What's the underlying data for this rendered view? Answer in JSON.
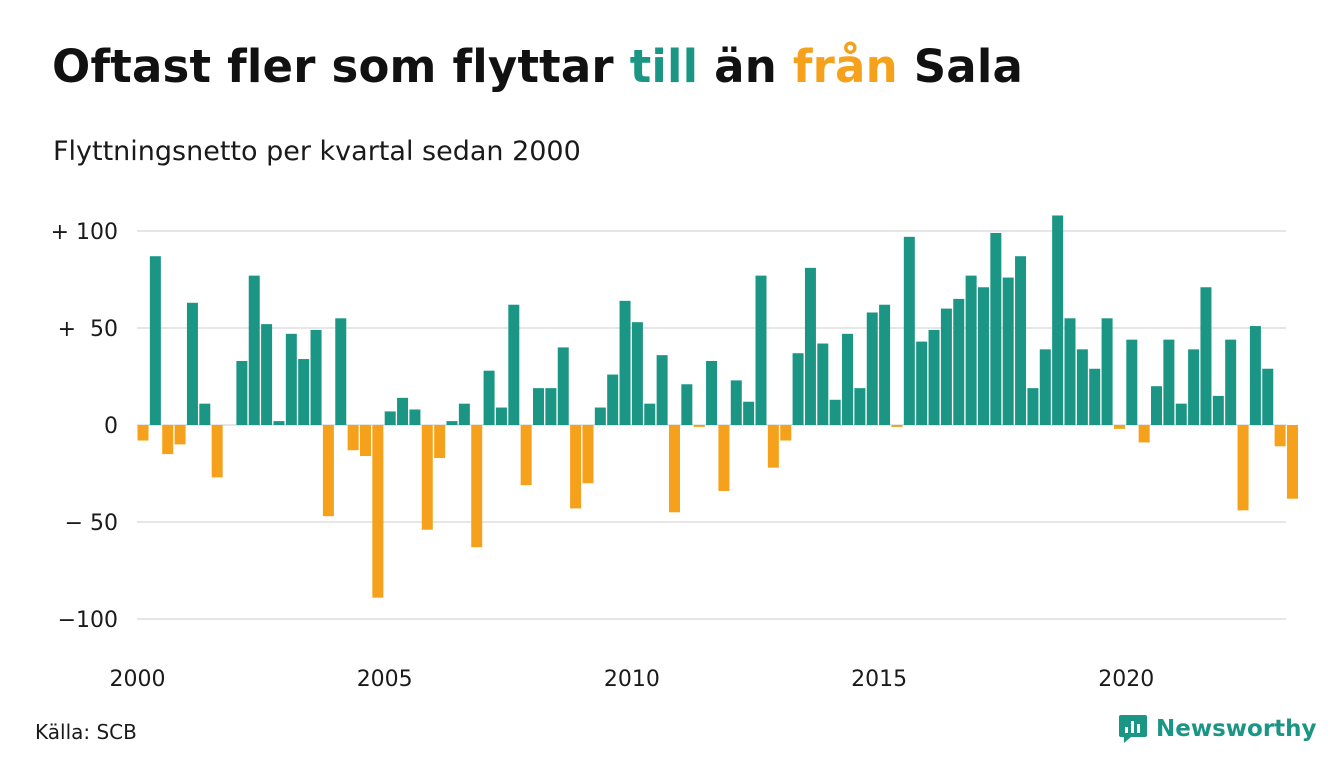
{
  "title": {
    "part1": "Oftast fler som flyttar ",
    "pos_word": "till",
    "part2": " än ",
    "neg_word": "från",
    "part3": " Sala"
  },
  "subtitle": "Flyttningsnetto per kvartal sedan 2000",
  "source": "Källa: SCB",
  "brand": {
    "name": "Newsworthy",
    "icon": "newsworthy-logo-icon"
  },
  "colors": {
    "positive": "#1b9685",
    "negative": "#f5a11c",
    "grid": "#dddddd"
  },
  "chart_data": {
    "type": "bar",
    "title": "Oftast fler som flyttar till än från Sala",
    "subtitle": "Flyttningsnetto per kvartal sedan 2000",
    "xlabel": "",
    "ylabel": "",
    "ylim": [
      -110,
      110
    ],
    "grid": true,
    "y_ticks": [
      100,
      50,
      0,
      -50,
      -100
    ],
    "y_tick_labels": [
      "+ 100",
      "+  50",
      "0",
      "− 50",
      "−100"
    ],
    "x_ticks": [
      "2000",
      "2005",
      "2010",
      "2015",
      "2020"
    ],
    "x_start_year": 2000,
    "categories": [
      "2000 K1",
      "2000 K2",
      "2000 K3",
      "2000 K4",
      "2001 K1",
      "2001 K2",
      "2001 K3",
      "2001 K4",
      "2002 K1",
      "2002 K2",
      "2002 K3",
      "2002 K4",
      "2003 K1",
      "2003 K2",
      "2003 K3",
      "2003 K4",
      "2004 K1",
      "2004 K2",
      "2004 K3",
      "2004 K4",
      "2005 K1",
      "2005 K2",
      "2005 K3",
      "2005 K4",
      "2006 K1",
      "2006 K2",
      "2006 K3",
      "2006 K4",
      "2007 K1",
      "2007 K2",
      "2007 K3",
      "2007 K4",
      "2008 K1",
      "2008 K2",
      "2008 K3",
      "2008 K4",
      "2009 K1",
      "2009 K2",
      "2009 K3",
      "2009 K4",
      "2010 K1",
      "2010 K2",
      "2010 K3",
      "2010 K4",
      "2011 K1",
      "2011 K2",
      "2011 K3",
      "2011 K4",
      "2012 K1",
      "2012 K2",
      "2012 K3",
      "2012 K4",
      "2013 K1",
      "2013 K2",
      "2013 K3",
      "2013 K4",
      "2014 K1",
      "2014 K2",
      "2014 K3",
      "2014 K4",
      "2015 K1",
      "2015 K2",
      "2015 K3",
      "2015 K4",
      "2016 K1",
      "2016 K2",
      "2016 K3",
      "2016 K4",
      "2017 K1",
      "2017 K2",
      "2017 K3",
      "2017 K4",
      "2018 K1",
      "2018 K2",
      "2018 K3",
      "2018 K4",
      "2019 K1",
      "2019 K2",
      "2019 K3",
      "2019 K4",
      "2020 K1",
      "2020 K2",
      "2020 K3",
      "2020 K4",
      "2021 K1",
      "2021 K2",
      "2021 K3",
      "2021 K4",
      "2022 K1",
      "2022 K2",
      "2022 K3",
      "2022 K4",
      "2023 K1",
      "2023 K2"
    ],
    "values": [
      -8,
      87,
      -15,
      -10,
      63,
      11,
      -27,
      0,
      33,
      77,
      52,
      2,
      47,
      34,
      49,
      -47,
      55,
      -13,
      -16,
      -89,
      7,
      14,
      8,
      -54,
      -17,
      2,
      11,
      -63,
      28,
      9,
      62,
      -31,
      19,
      19,
      40,
      -43,
      -30,
      9,
      26,
      64,
      53,
      11,
      36,
      -45,
      21,
      -1,
      33,
      -34,
      23,
      12,
      77,
      -22,
      -8,
      37,
      81,
      42,
      13,
      47,
      19,
      58,
      62,
      -1,
      97,
      43,
      49,
      60,
      65,
      77,
      71,
      99,
      76,
      87,
      19,
      39,
      108,
      55,
      39,
      29,
      55,
      -2,
      44,
      -9,
      20,
      44,
      11,
      39,
      71,
      15,
      44,
      -44,
      51,
      29,
      -11,
      -38
    ]
  }
}
